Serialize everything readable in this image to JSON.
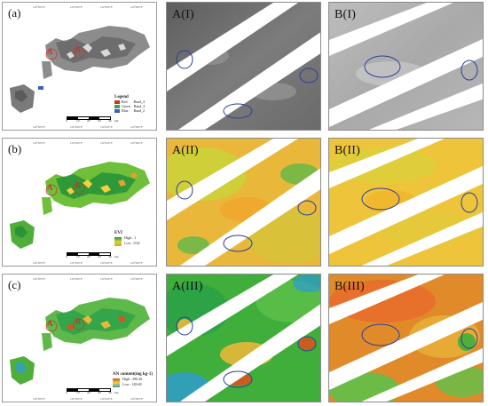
{
  "map_panels": [
    {
      "label": "(a)",
      "lon_ticks": [
        "120°30'0\"E",
        "120°36'0\"E",
        "120°42'0\"E",
        "120°48'0\"E"
      ],
      "lat_ticks": [
        "30°42'0\"N",
        "30°36'0\"N",
        "30°30'0\"N"
      ],
      "legend_title": "Legend",
      "legend_items": [
        {
          "name": "Red",
          "value": "Band_4",
          "color": "#c0392b"
        },
        {
          "name": "Green",
          "value": "Band_3",
          "color": "#3fa34d"
        },
        {
          "name": "Blue",
          "value": "Band_2",
          "color": "#3b5fc0"
        }
      ],
      "scale": [
        "0",
        "10",
        "20",
        "30",
        "40"
      ],
      "scale_unit": "km",
      "sites": [
        "A",
        "B"
      ]
    },
    {
      "label": "(b)",
      "lon_ticks": [
        "120°30'0\"E",
        "120°36'0\"E",
        "120°42'0\"E",
        "120°48'0\"E"
      ],
      "lat_ticks": [
        "30°42'0\"N",
        "30°36'0\"N",
        "30°30'0\"N"
      ],
      "legend_title": "EVI",
      "legend_high": "High : 1",
      "legend_low": "Low : 0.02",
      "scale": [
        "0",
        "10",
        "20",
        "30",
        "40"
      ],
      "scale_unit": "km",
      "sites": [
        "A",
        "B"
      ]
    },
    {
      "label": "(c)",
      "lon_ticks": [
        "120°30'0\"E",
        "120°36'0\"E",
        "120°42'0\"E",
        "120°48'0\"E"
      ],
      "lat_ticks": [
        "30°42'0\"N",
        "30°36'0\"N",
        "30°30'0\"N"
      ],
      "legend_title": "AN content(mg kg-1)",
      "legend_high": "High : 290.26",
      "legend_low": "Low : 149.69",
      "scale": [
        "0",
        "10",
        "20",
        "30",
        "40"
      ],
      "scale_unit": "km",
      "sites": [
        "A",
        "B"
      ]
    }
  ],
  "image_panels": [
    {
      "label": "A(I)",
      "kind": "gray-stripes"
    },
    {
      "label": "B(I)",
      "kind": "gray-light"
    },
    {
      "label": "A(II)",
      "kind": "evi-a"
    },
    {
      "label": "B(II)",
      "kind": "evi-b"
    },
    {
      "label": "A(III)",
      "kind": "an-a"
    },
    {
      "label": "B(III)",
      "kind": "an-b"
    }
  ],
  "colors": {
    "ellipse": "#2a3f9a",
    "stripe": "#ffffff",
    "evi_high": "#1f8f3a",
    "evi_low": "#e8a02a",
    "an_high": "#d9531e",
    "an_low": "#2e9bd6"
  }
}
